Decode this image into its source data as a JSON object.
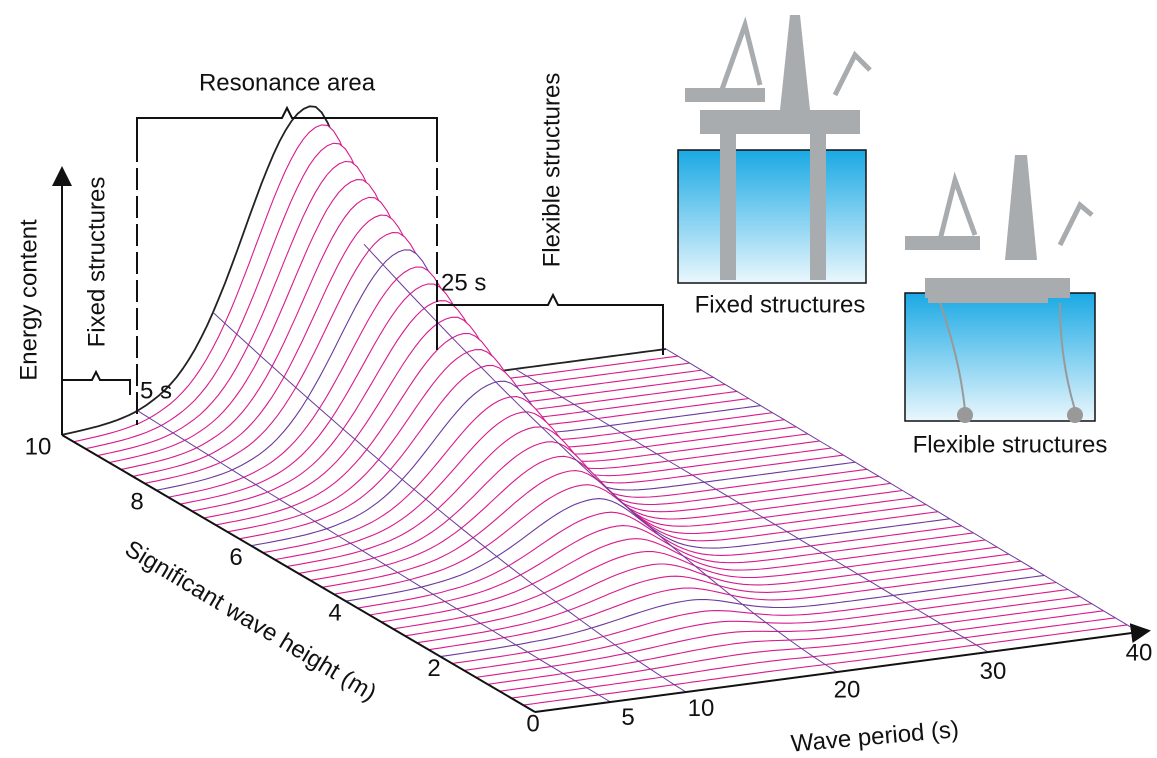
{
  "axes": {
    "energy_label": "Energy content",
    "height_label": "Significant wave height (m)",
    "period_label": "Wave period (s)",
    "height_ticks": [
      0,
      2,
      4,
      6,
      8,
      10
    ],
    "period_ticks": [
      5,
      10,
      20,
      30,
      40
    ]
  },
  "zones": {
    "fixed": "Fixed structures",
    "resonance": "Resonance area",
    "flexible": "Flexible structures",
    "start": "5 s",
    "end": "25 s"
  },
  "illustrations": {
    "fixed": "Fixed structures",
    "flexible": "Flexible structures"
  }
}
